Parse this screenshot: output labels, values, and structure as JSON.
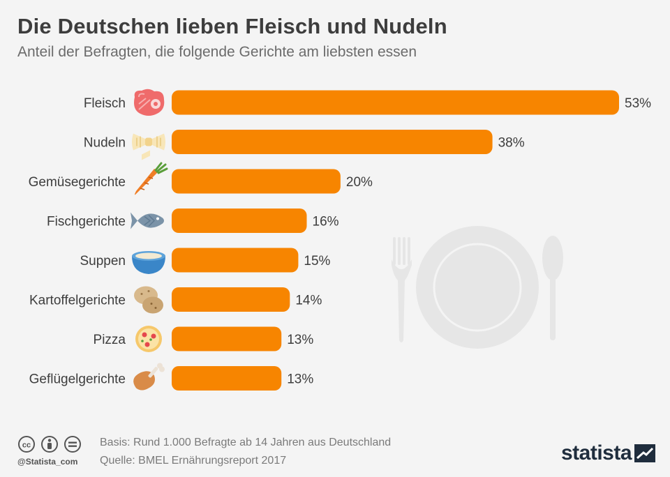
{
  "header": {
    "title": "Die Deutschen lieben Fleisch und Nudeln",
    "subtitle": "Anteil der Befragten, die folgende Gerichte am liebsten essen"
  },
  "footer": {
    "basis": "Basis: Rund 1.000 Befragte ab 14 Jahren aus Deutschland",
    "source": "Quelle: BMEL Ernährungsreport 2017",
    "handle": "@Statista_com",
    "brand": "statista"
  },
  "colors": {
    "bar": "#f78500",
    "background": "#f4f4f4",
    "decoration": "#e6e6e6"
  },
  "chart_data": {
    "type": "bar",
    "orientation": "horizontal",
    "categories": [
      "Fleisch",
      "Nudeln",
      "Gemüsegerichte",
      "Fischgerichte",
      "Suppen",
      "Kartoffelgerichte",
      "Pizza",
      "Geflügelgerichte"
    ],
    "values": [
      53,
      38,
      20,
      16,
      15,
      14,
      13,
      13
    ],
    "value_labels": [
      "53%",
      "38%",
      "20%",
      "16%",
      "15%",
      "14%",
      "13%",
      "13%"
    ],
    "icons": [
      "steak-icon",
      "pasta-icon",
      "carrot-icon",
      "fish-icon",
      "soup-bowl-icon",
      "potato-icon",
      "pizza-icon",
      "chicken-leg-icon"
    ],
    "unit": "%",
    "xlim": [
      0,
      53
    ],
    "grid": false
  }
}
